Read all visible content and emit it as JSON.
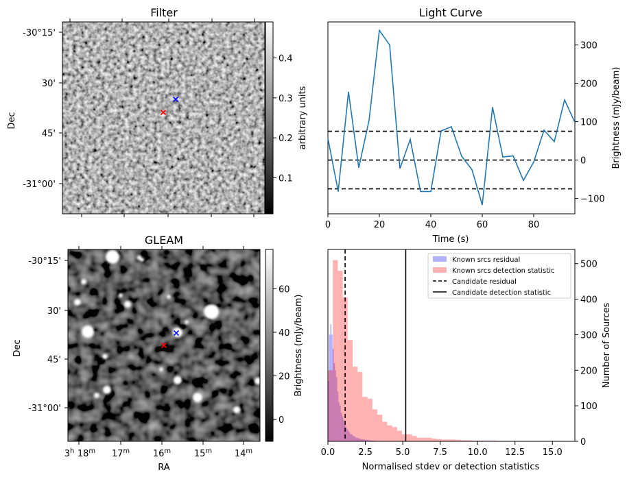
{
  "chart_data": [
    {
      "id": "filter",
      "type": "heatmap",
      "title": "Filter",
      "ylabel": "Dec",
      "yticks": [
        "-30°15'",
        "30'",
        "45'",
        "-31°00'"
      ],
      "colorbar": {
        "label": "arbitrary units",
        "ticks": [
          "0.1",
          "0.2",
          "0.3",
          "0.4"
        ],
        "range": [
          0.01,
          0.49
        ]
      },
      "markers": [
        {
          "color": "red",
          "label": "x"
        },
        {
          "color": "blue",
          "label": "x"
        }
      ]
    },
    {
      "id": "lightcurve",
      "type": "line",
      "title": "Light Curve",
      "xlabel": "Time (s)",
      "ylabel": "Brightness (mJy/beam)",
      "xlim": [
        0,
        96
      ],
      "ylim": [
        -140,
        360
      ],
      "xticks": [
        0,
        20,
        40,
        60,
        80
      ],
      "yticks": [
        -100,
        0,
        100,
        200,
        300
      ],
      "x": [
        0,
        4,
        8,
        12,
        16,
        20,
        24,
        28,
        32,
        36,
        40,
        44,
        48,
        52,
        56,
        60,
        64,
        68,
        72,
        76,
        80,
        84,
        88,
        92,
        96
      ],
      "values": [
        57,
        -82,
        178,
        -20,
        104,
        338,
        300,
        -22,
        54,
        -82,
        -82,
        76,
        87,
        10,
        -25,
        -117,
        138,
        8,
        11,
        -53,
        -5,
        78,
        48,
        157,
        98
      ],
      "hlines": [
        75,
        0,
        -75
      ],
      "line_color": "#1f77b4"
    },
    {
      "id": "gleam",
      "type": "heatmap",
      "title": "GLEAM",
      "xlabel": "RA",
      "ylabel": "Dec",
      "xticks": [
        "18",
        "17",
        "16",
        "15",
        "14"
      ],
      "x_first_hour": "3",
      "x_hour_unit": "h",
      "x_min_unit": "m",
      "yticks": [
        "-30°15'",
        "30'",
        "45'",
        "-31°00'"
      ],
      "colorbar": {
        "label": "Brightness (mJy/beam)",
        "ticks": [
          "0",
          "20",
          "40",
          "60"
        ],
        "range": [
          -10,
          78
        ]
      },
      "markers": [
        {
          "color": "red",
          "label": "x"
        },
        {
          "color": "blue",
          "label": "x"
        }
      ]
    },
    {
      "id": "histogram",
      "type": "bar",
      "xlabel": "Normalised stdev or detection statistics",
      "ylabel": "Number of Sources",
      "xlim": [
        0,
        16.5
      ],
      "ylim": [
        0,
        540
      ],
      "xticks": [
        "0.0",
        "2.5",
        "5.0",
        "7.5",
        "10.0",
        "12.5",
        "15.0"
      ],
      "yticks": [
        0,
        100,
        200,
        300,
        400,
        500
      ],
      "series": [
        {
          "name": "Known srcs residual",
          "color": "#0000ff",
          "bin_width": 0.078,
          "bin_start": 0,
          "values": [
            170,
            300,
            330,
            300,
            260,
            220,
            200,
            180,
            140,
            110,
            100,
            80,
            70,
            60,
            50,
            40,
            35,
            30,
            25,
            20,
            20,
            15,
            15,
            12,
            10,
            10,
            8,
            8,
            6,
            6,
            5,
            5,
            4,
            4,
            3,
            3,
            3,
            2,
            2,
            2
          ]
        },
        {
          "name": "Known srcs detection statistic",
          "color": "#ff0000",
          "bin_width": 0.33,
          "bin_start": 0,
          "values": [
            200,
            510,
            480,
            405,
            285,
            210,
            195,
            125,
            120,
            90,
            75,
            55,
            45,
            40,
            30,
            20,
            20,
            15,
            10,
            10,
            10,
            8,
            6,
            5,
            5,
            5,
            4,
            3,
            3,
            2,
            2,
            2,
            2,
            2,
            1,
            1,
            1,
            1,
            1,
            1,
            1,
            1,
            1,
            1,
            1,
            1,
            1,
            1
          ]
        }
      ],
      "vlines": [
        {
          "name": "Candidate residual",
          "x": 1.15,
          "style": "dashed"
        },
        {
          "name": "Candidate detection statistic",
          "x": 5.2,
          "style": "solid"
        }
      ]
    }
  ]
}
